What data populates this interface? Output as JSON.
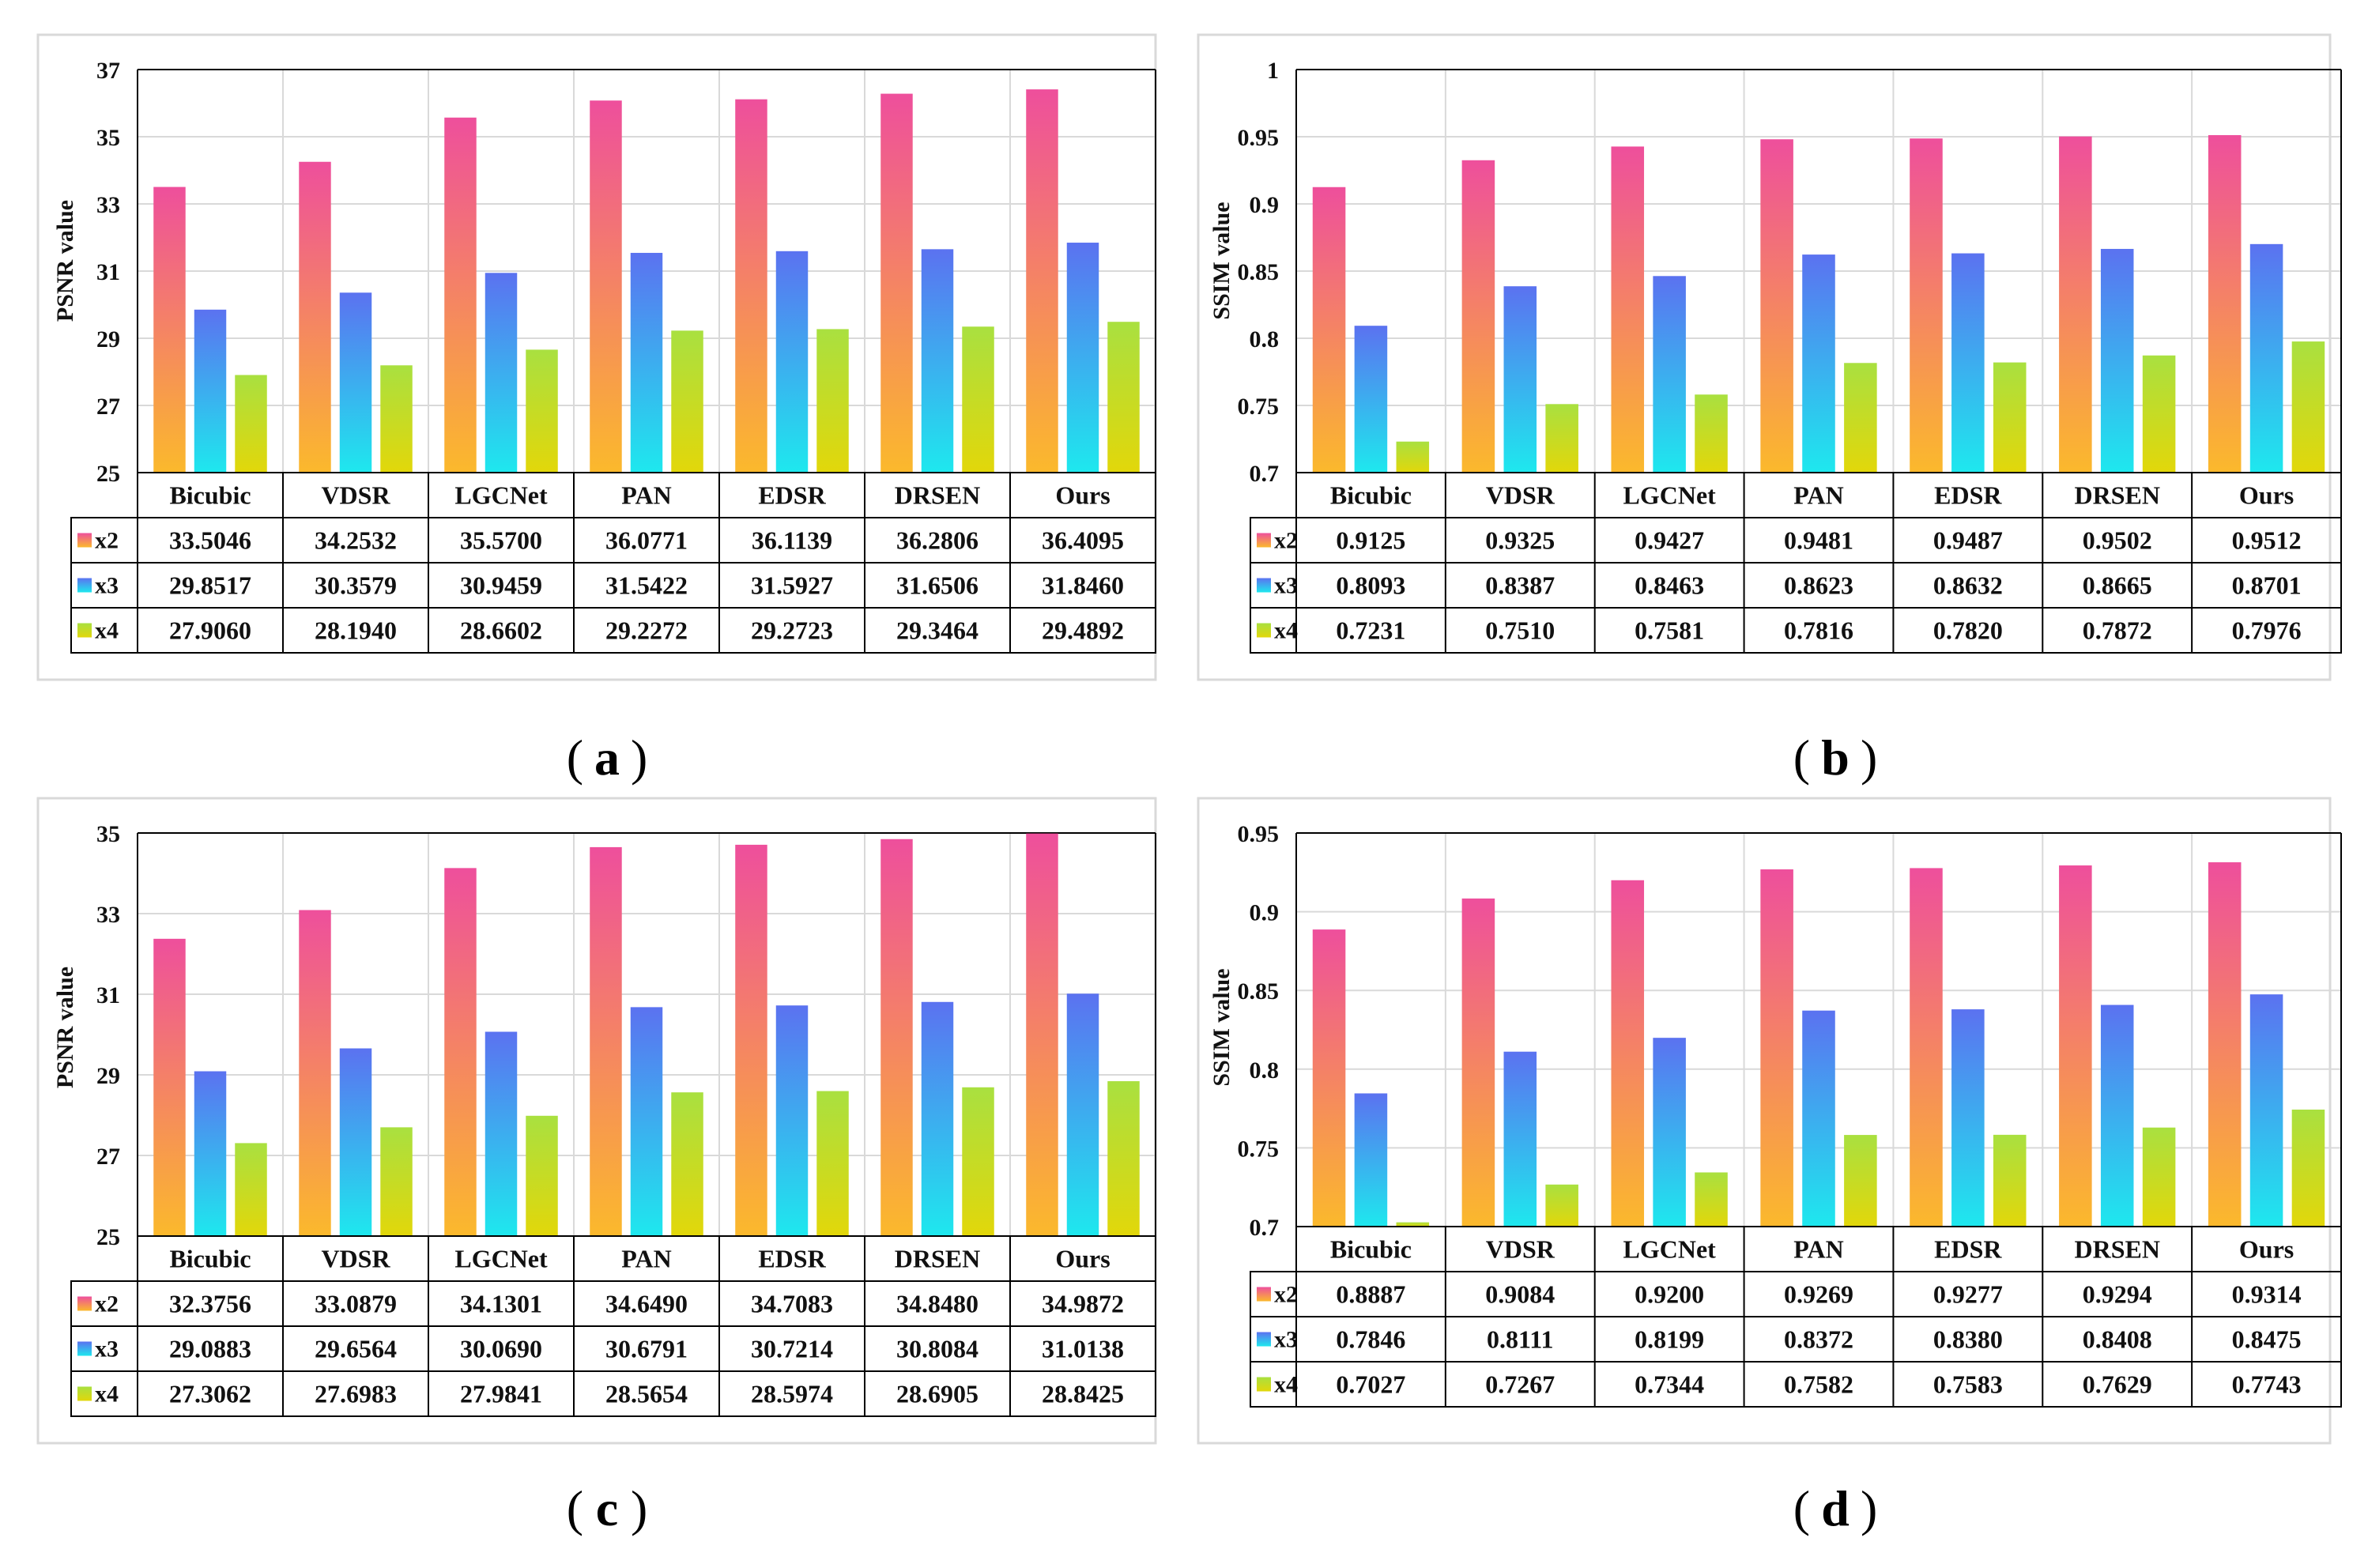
{
  "chart_data": [
    {
      "id": "a",
      "type": "bar",
      "panel_label": "a",
      "ylabel": "PSNR value",
      "ylim": [
        25,
        37
      ],
      "yticks": [
        "25",
        "27",
        "29",
        "31",
        "33",
        "35",
        "37"
      ],
      "categories": [
        "Bicubic",
        "VDSR",
        "LGCNet",
        "PAN",
        "EDSR",
        "DRSEN",
        "Ours"
      ],
      "series": [
        {
          "name": "x2",
          "values": [
            33.5046,
            34.2532,
            35.57,
            36.0771,
            36.1139,
            36.2806,
            36.4095
          ],
          "labels": [
            "33.5046",
            "34.2532",
            "35.5700",
            "36.0771",
            "36.1139",
            "36.2806",
            "36.4095"
          ]
        },
        {
          "name": "x3",
          "values": [
            29.8517,
            30.3579,
            30.9459,
            31.5422,
            31.5927,
            31.6506,
            31.846
          ],
          "labels": [
            "29.8517",
            "30.3579",
            "30.9459",
            "31.5422",
            "31.5927",
            "31.6506",
            "31.8460"
          ]
        },
        {
          "name": "x4",
          "values": [
            27.906,
            28.194,
            28.6602,
            29.2272,
            29.2723,
            29.3464,
            29.4892
          ],
          "labels": [
            "27.9060",
            "28.1940",
            "28.6602",
            "29.2272",
            "29.2723",
            "29.3464",
            "29.4892"
          ]
        }
      ],
      "grid": true
    },
    {
      "id": "b",
      "type": "bar",
      "panel_label": "b",
      "ylabel": "SSIM value",
      "ylim": [
        0.7,
        1.0
      ],
      "yticks": [
        "0.7",
        "0.75",
        "0.8",
        "0.85",
        "0.9",
        "0.95",
        "1"
      ],
      "categories": [
        "Bicubic",
        "VDSR",
        "LGCNet",
        "PAN",
        "EDSR",
        "DRSEN",
        "Ours"
      ],
      "series": [
        {
          "name": "x2",
          "values": [
            0.9125,
            0.9325,
            0.9427,
            0.9481,
            0.9487,
            0.9502,
            0.9512
          ],
          "labels": [
            "0.9125",
            "0.9325",
            "0.9427",
            "0.9481",
            "0.9487",
            "0.9502",
            "0.9512"
          ]
        },
        {
          "name": "x3",
          "values": [
            0.8093,
            0.8387,
            0.8463,
            0.8623,
            0.8632,
            0.8665,
            0.8701
          ],
          "labels": [
            "0.8093",
            "0.8387",
            "0.8463",
            "0.8623",
            "0.8632",
            "0.8665",
            "0.8701"
          ]
        },
        {
          "name": "x4",
          "values": [
            0.7231,
            0.751,
            0.7581,
            0.7816,
            0.782,
            0.7872,
            0.7976
          ],
          "labels": [
            "0.7231",
            "0.7510",
            "0.7581",
            "0.7816",
            "0.7820",
            "0.7872",
            "0.7976"
          ]
        }
      ],
      "grid": true
    },
    {
      "id": "c",
      "type": "bar",
      "panel_label": "c",
      "ylabel": "PSNR value",
      "ylim": [
        25,
        35
      ],
      "yticks": [
        "25",
        "27",
        "29",
        "31",
        "33",
        "35"
      ],
      "categories": [
        "Bicubic",
        "VDSR",
        "LGCNet",
        "PAN",
        "EDSR",
        "DRSEN",
        "Ours"
      ],
      "series": [
        {
          "name": "x2",
          "values": [
            32.3756,
            33.0879,
            34.1301,
            34.649,
            34.7083,
            34.848,
            34.9872
          ],
          "labels": [
            "32.3756",
            "33.0879",
            "34.1301",
            "34.6490",
            "34.7083",
            "34.8480",
            "34.9872"
          ]
        },
        {
          "name": "x3",
          "values": [
            29.0883,
            29.6564,
            30.069,
            30.6791,
            30.7214,
            30.8084,
            31.0138
          ],
          "labels": [
            "29.0883",
            "29.6564",
            "30.0690",
            "30.6791",
            "30.7214",
            "30.8084",
            "31.0138"
          ]
        },
        {
          "name": "x4",
          "values": [
            27.3062,
            27.6983,
            27.9841,
            28.5654,
            28.5974,
            28.6905,
            28.8425
          ],
          "labels": [
            "27.3062",
            "27.6983",
            "27.9841",
            "28.5654",
            "28.5974",
            "28.6905",
            "28.8425"
          ]
        }
      ],
      "grid": true
    },
    {
      "id": "d",
      "type": "bar",
      "panel_label": "d",
      "ylabel": "SSIM value",
      "ylim": [
        0.7,
        0.95
      ],
      "yticks": [
        "0.7",
        "0.75",
        "0.8",
        "0.85",
        "0.9",
        "0.95"
      ],
      "categories": [
        "Bicubic",
        "VDSR",
        "LGCNet",
        "PAN",
        "EDSR",
        "DRSEN",
        "Ours"
      ],
      "series": [
        {
          "name": "x2",
          "values": [
            0.8887,
            0.9084,
            0.92,
            0.9269,
            0.9277,
            0.9294,
            0.9314
          ],
          "labels": [
            "0.8887",
            "0.9084",
            "0.9200",
            "0.9269",
            "0.9277",
            "0.9294",
            "0.9314"
          ]
        },
        {
          "name": "x3",
          "values": [
            0.7846,
            0.8111,
            0.8199,
            0.8372,
            0.838,
            0.8408,
            0.8475
          ],
          "labels": [
            "0.7846",
            "0.8111",
            "0.8199",
            "0.8372",
            "0.8380",
            "0.8408",
            "0.8475"
          ]
        },
        {
          "name": "x4",
          "values": [
            0.7027,
            0.7267,
            0.7344,
            0.7582,
            0.7583,
            0.7629,
            0.7743
          ],
          "labels": [
            "0.7027",
            "0.7267",
            "0.7344",
            "0.7582",
            "0.7583",
            "0.7629",
            "0.7743"
          ]
        }
      ],
      "grid": true
    }
  ],
  "colors": {
    "x2_top": "#ee4f9c",
    "x2_bottom": "#fbb92c",
    "x3_top": "#5b72f0",
    "x3_bottom": "#1ee8ee",
    "x4_top": "#a9e040",
    "x4_bottom": "#e2d70a",
    "grid": "#d9d9d9",
    "axis": "#000000",
    "frame": "#d9d9d9"
  }
}
